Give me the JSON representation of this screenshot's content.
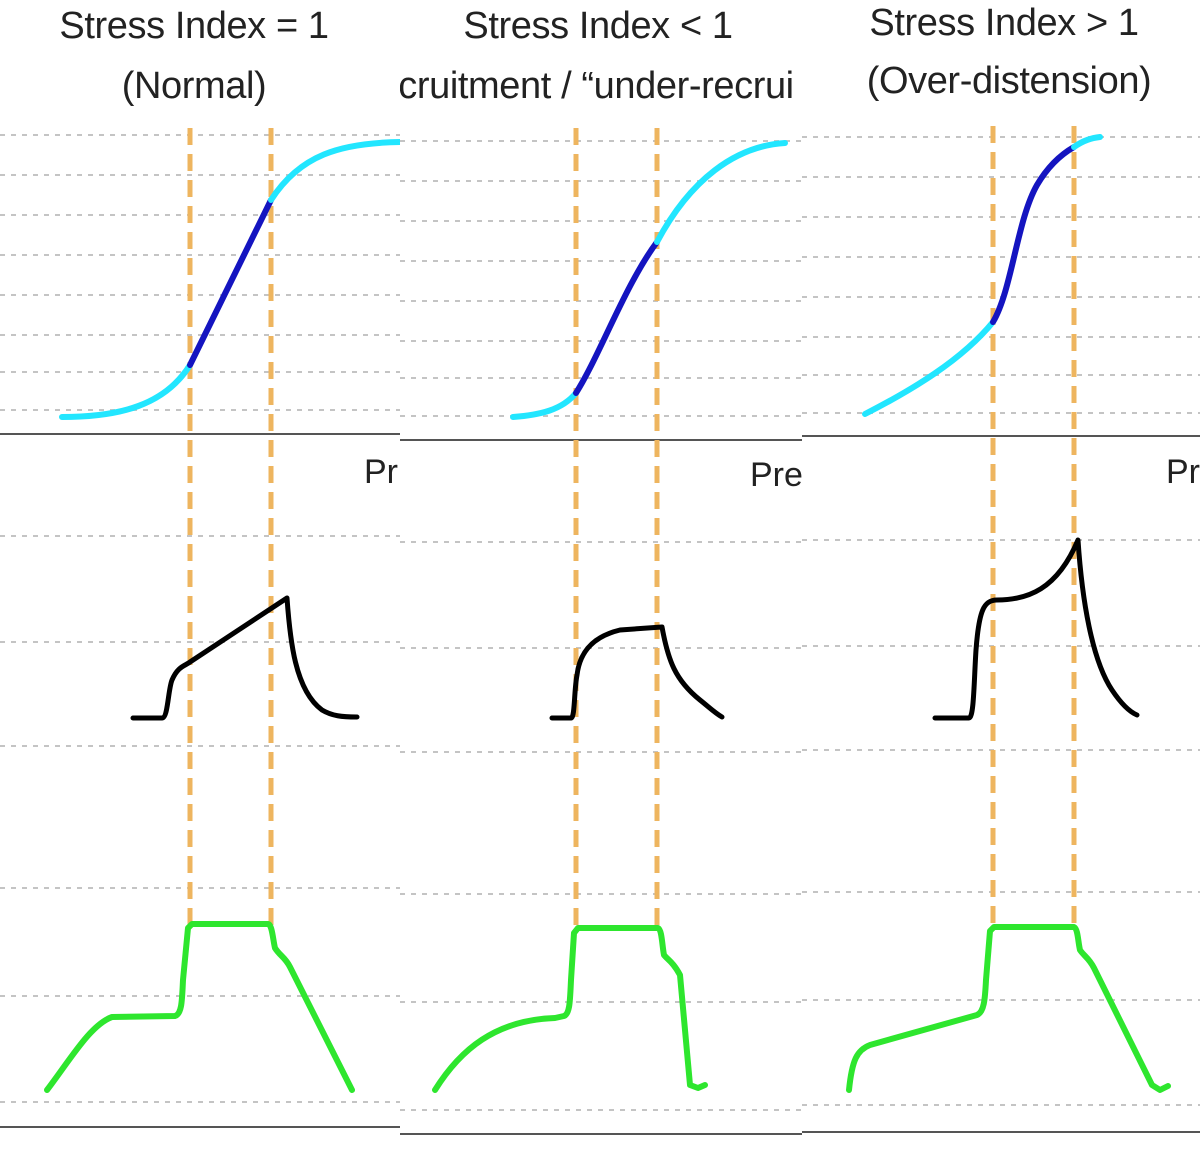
{
  "panels": [
    {
      "title": "Stress Index = 1",
      "subtitle": "(Normal)",
      "axis_label": "Pr"
    },
    {
      "title": "Stress Index < 1",
      "subtitle": "cruitment / “under-recrui",
      "axis_label": "Pre"
    },
    {
      "title": "Stress Index > 1",
      "subtitle": "(Over-distension)",
      "axis_label": "Pr"
    }
  ],
  "colors": {
    "gridline": "#c4c4c4",
    "axis_line": "#555555",
    "guide_dashes": "#eeb55f",
    "curve_outer": "#22e6ff",
    "curve_middle": "#1414c0",
    "pressure_trace": "#000000",
    "flow_trace": "#2ee62e",
    "text": "#222222"
  }
}
